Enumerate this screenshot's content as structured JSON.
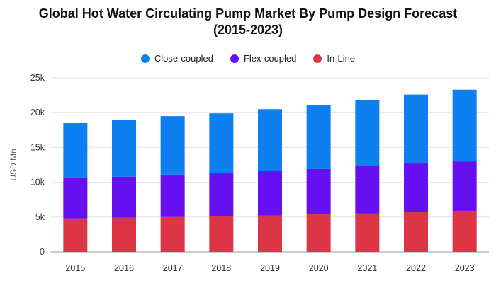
{
  "chart_data": {
    "type": "bar",
    "stacked": true,
    "title_lines": [
      "Global Hot Water Circulating Pump Market By Pump Design Forecast",
      "(2015-2023)"
    ],
    "xlabel": "",
    "ylabel": "USD Mn",
    "ylim": [
      0,
      25000
    ],
    "yticks": [
      0,
      5000,
      10000,
      15000,
      20000,
      25000
    ],
    "ytick_labels": [
      "0",
      "5k",
      "10k",
      "15k",
      "20k",
      "25k"
    ],
    "grid": true,
    "legend_position": "top-center",
    "categories": [
      "2015",
      "2016",
      "2017",
      "2018",
      "2019",
      "2020",
      "2021",
      "2022",
      "2023"
    ],
    "series": [
      {
        "name": "In-Line",
        "color": "#dc3545",
        "values": [
          4800,
          4900,
          5000,
          5100,
          5200,
          5400,
          5500,
          5700,
          5900
        ]
      },
      {
        "name": "Flex-coupled",
        "color": "#6610f2",
        "values": [
          5800,
          5900,
          6100,
          6200,
          6400,
          6500,
          6800,
          7000,
          7100
        ]
      },
      {
        "name": "Close-coupled",
        "color": "#0d7ff0",
        "values": [
          7900,
          8200,
          8400,
          8600,
          8900,
          9200,
          9500,
          9900,
          10300
        ]
      }
    ],
    "legend_order": [
      "Close-coupled",
      "Flex-coupled",
      "In-Line"
    ]
  }
}
